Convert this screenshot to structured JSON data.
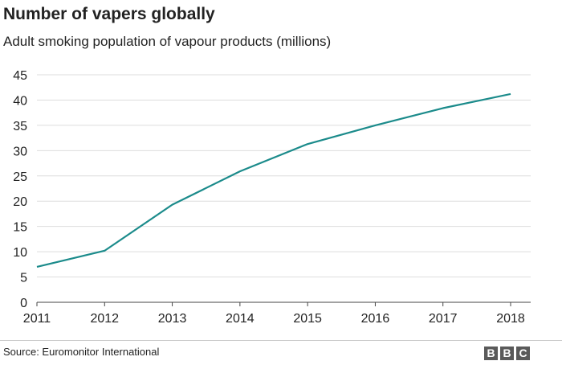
{
  "chart_data": {
    "type": "line",
    "title": "Number of vapers globally",
    "subtitle": "Adult smoking population of vapour products (millions)",
    "xlabel": "",
    "ylabel": "",
    "x": [
      "2011",
      "2012",
      "2013",
      "2014",
      "2015",
      "2016",
      "2017",
      "2018"
    ],
    "series": [
      {
        "values": [
          7.0,
          10.2,
          19.3,
          25.9,
          31.3,
          35.0,
          38.4,
          41.2
        ],
        "color": "#1b8b8b"
      }
    ],
    "ylim": [
      0,
      45
    ],
    "yticks": [
      "0",
      "5",
      "10",
      "15",
      "20",
      "25",
      "30",
      "35",
      "40",
      "45"
    ],
    "grid": true
  },
  "footer": {
    "source": "Source: Euromonitor International",
    "logo_letters": [
      "B",
      "B",
      "C"
    ]
  }
}
